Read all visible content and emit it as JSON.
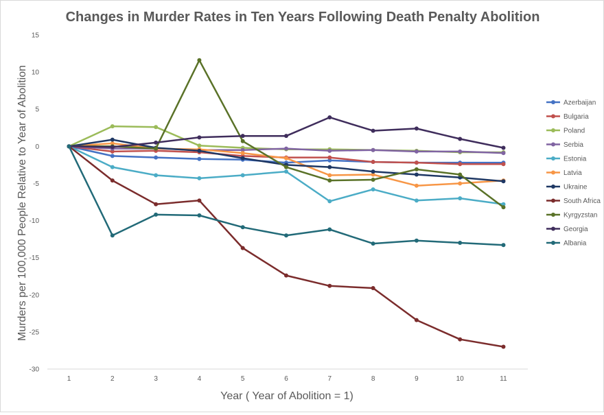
{
  "chart_data": {
    "type": "line",
    "title": "Changes in Murder Rates in Ten Years Following Death Penalty Abolition",
    "xlabel": "Year ( Year of Abolition = 1)",
    "ylabel": "Murders per 100,000 People Relative to Year of Abolition",
    "x": [
      1,
      2,
      3,
      4,
      5,
      6,
      7,
      8,
      9,
      10,
      11
    ],
    "ylim": [
      -30,
      15
    ],
    "yticks": [
      15,
      10,
      5,
      0,
      -5,
      -10,
      -15,
      -20,
      -25,
      -30
    ],
    "grid": false,
    "legend_position": "right",
    "series": [
      {
        "name": "Azerbaijan",
        "color": "#4472c4",
        "values": [
          0,
          -1.3,
          -1.5,
          -1.7,
          -1.8,
          -2.2,
          -1.9,
          -2.1,
          -2.2,
          -2.2,
          -2.2
        ]
      },
      {
        "name": "Bulgaria",
        "color": "#c0504d",
        "values": [
          0,
          -0.7,
          -0.6,
          -0.8,
          -1.3,
          -1.5,
          -1.5,
          -2.1,
          -2.2,
          -2.4,
          -2.4
        ]
      },
      {
        "name": "Poland",
        "color": "#9bbb59",
        "values": [
          0,
          2.7,
          2.6,
          0.1,
          -0.2,
          -0.4,
          -0.4,
          -0.5,
          -0.6,
          -0.8,
          -0.8
        ]
      },
      {
        "name": "Serbia",
        "color": "#8064a2",
        "values": [
          0,
          -0.3,
          -0.3,
          -0.5,
          -0.5,
          -0.3,
          -0.6,
          -0.5,
          -0.7,
          -0.7,
          -0.9
        ]
      },
      {
        "name": "Estonia",
        "color": "#4bacc6",
        "values": [
          0,
          -2.8,
          -3.9,
          -4.3,
          -3.9,
          -3.4,
          -7.4,
          -5.8,
          -7.3,
          -7.0,
          -7.8
        ]
      },
      {
        "name": "Latvia",
        "color": "#f79646",
        "values": [
          0,
          0.4,
          -0.3,
          -0.4,
          -0.9,
          -1.6,
          -3.9,
          -3.8,
          -5.3,
          -5.0,
          -4.6
        ]
      },
      {
        "name": "Ukraine",
        "color": "#1f3864",
        "values": [
          0,
          0.9,
          -0.2,
          -0.6,
          -1.6,
          -2.5,
          -2.8,
          -3.4,
          -3.8,
          -4.2,
          -4.7
        ]
      },
      {
        "name": "South Africa",
        "color": "#7b2c2c",
        "values": [
          0,
          -4.6,
          -7.8,
          -7.3,
          -13.7,
          -17.4,
          -18.8,
          -19.1,
          -23.4,
          -26.0,
          -27.0
        ]
      },
      {
        "name": "Kyrgyzstan",
        "color": "#5a7228",
        "values": [
          0,
          0.0,
          -0.3,
          11.6,
          0.7,
          -2.8,
          -4.6,
          -4.5,
          -3.1,
          -3.8,
          -8.2
        ]
      },
      {
        "name": "Georgia",
        "color": "#3f2d5c",
        "values": [
          0,
          -0.1,
          0.5,
          1.2,
          1.4,
          1.4,
          3.9,
          2.1,
          2.4,
          1.0,
          -0.2
        ]
      },
      {
        "name": "Albania",
        "color": "#226a78",
        "values": [
          0,
          -12.0,
          -9.2,
          -9.3,
          -10.9,
          -12.0,
          -11.2,
          -13.1,
          -12.7,
          -13.0,
          -13.3
        ]
      }
    ]
  }
}
